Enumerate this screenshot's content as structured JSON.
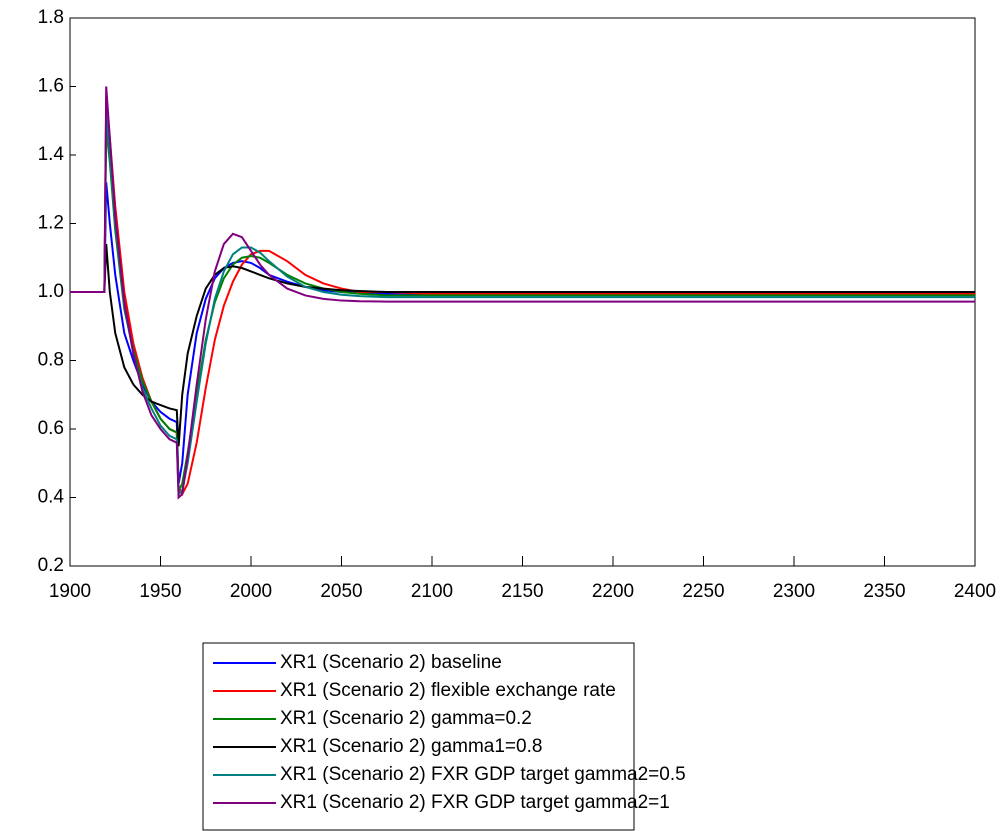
{
  "chart_data": {
    "type": "line",
    "x": [
      1900,
      1919,
      1920,
      1922,
      1925,
      1930,
      1935,
      1940,
      1945,
      1950,
      1955,
      1959,
      1960,
      1962,
      1965,
      1970,
      1975,
      1980,
      1985,
      1990,
      1995,
      2000,
      2005,
      2010,
      2020,
      2030,
      2040,
      2050,
      2060,
      2075,
      2100,
      2200,
      2400
    ],
    "xlim": [
      1900,
      2400
    ],
    "xticks": [
      1900,
      1950,
      2000,
      2050,
      2100,
      2150,
      2200,
      2250,
      2300,
      2350,
      2400
    ],
    "ylim": [
      0.2,
      1.8
    ],
    "yticks": [
      0.2,
      0.4,
      0.6,
      0.8,
      {
        "value": 1,
        "label": "1.0"
      },
      1.2,
      1.4,
      1.6,
      1.8
    ],
    "series": [
      {
        "name": "XR1 (Scenario 2) baseline",
        "color": "#0000ff",
        "values": [
          1.0,
          1.0,
          1.32,
          1.2,
          1.05,
          0.88,
          0.8,
          0.73,
          0.68,
          0.65,
          0.63,
          0.62,
          0.44,
          0.5,
          0.7,
          0.88,
          0.98,
          1.04,
          1.07,
          1.085,
          1.09,
          1.085,
          1.07,
          1.05,
          1.03,
          1.015,
          1.005,
          1.0,
          0.998,
          0.995,
          0.995,
          0.995,
          0.995
        ]
      },
      {
        "name": "XR1 (Scenario 2) flexible exchange rate",
        "color": "#ff0000",
        "values": [
          1.0,
          1.0,
          1.57,
          1.45,
          1.25,
          1.0,
          0.85,
          0.75,
          0.68,
          0.63,
          0.6,
          0.59,
          0.43,
          0.41,
          0.44,
          0.56,
          0.72,
          0.86,
          0.96,
          1.03,
          1.08,
          1.11,
          1.12,
          1.12,
          1.09,
          1.05,
          1.025,
          1.01,
          1.0,
          1.0,
          0.995,
          0.995,
          0.995
        ]
      },
      {
        "name": "XR1 (Scenario 2) gamma=0.2",
        "color": "#008000",
        "values": [
          1.0,
          1.0,
          1.48,
          1.38,
          1.18,
          0.95,
          0.83,
          0.74,
          0.68,
          0.63,
          0.6,
          0.59,
          0.42,
          0.44,
          0.53,
          0.7,
          0.86,
          0.97,
          1.04,
          1.08,
          1.1,
          1.105,
          1.1,
          1.085,
          1.05,
          1.025,
          1.01,
          1.0,
          0.995,
          0.99,
          0.99,
          0.99,
          0.99
        ]
      },
      {
        "name": "XR1 (Scenario 2) gamma1=0.8",
        "color": "#000000",
        "values": [
          1.0,
          1.0,
          1.14,
          1.0,
          0.88,
          0.78,
          0.73,
          0.7,
          0.68,
          0.67,
          0.66,
          0.655,
          0.55,
          0.7,
          0.82,
          0.93,
          1.01,
          1.05,
          1.07,
          1.075,
          1.07,
          1.06,
          1.05,
          1.04,
          1.025,
          1.015,
          1.01,
          1.005,
          1.003,
          1.0,
          1.0,
          1.0,
          1.0
        ]
      },
      {
        "name": "XR1 (Scenario 2) FXR GDP target gamma2=0.5",
        "color": "#008080",
        "values": [
          1.0,
          1.0,
          1.52,
          1.4,
          1.2,
          0.96,
          0.82,
          0.72,
          0.66,
          0.61,
          0.58,
          0.57,
          0.41,
          0.42,
          0.5,
          0.68,
          0.85,
          0.98,
          1.06,
          1.11,
          1.13,
          1.13,
          1.115,
          1.09,
          1.045,
          1.015,
          1.0,
          0.992,
          0.988,
          0.985,
          0.985,
          0.985,
          0.985
        ]
      },
      {
        "name": "XR1 (Scenario 2) FXR GDP target gamma2=1",
        "color": "#800080",
        "values": [
          1.0,
          1.0,
          1.6,
          1.45,
          1.22,
          0.97,
          0.82,
          0.71,
          0.64,
          0.6,
          0.57,
          0.56,
          0.4,
          0.41,
          0.52,
          0.73,
          0.92,
          1.06,
          1.14,
          1.17,
          1.16,
          1.12,
          1.08,
          1.05,
          1.01,
          0.99,
          0.98,
          0.975,
          0.973,
          0.972,
          0.972,
          0.972,
          0.972
        ]
      }
    ]
  }
}
